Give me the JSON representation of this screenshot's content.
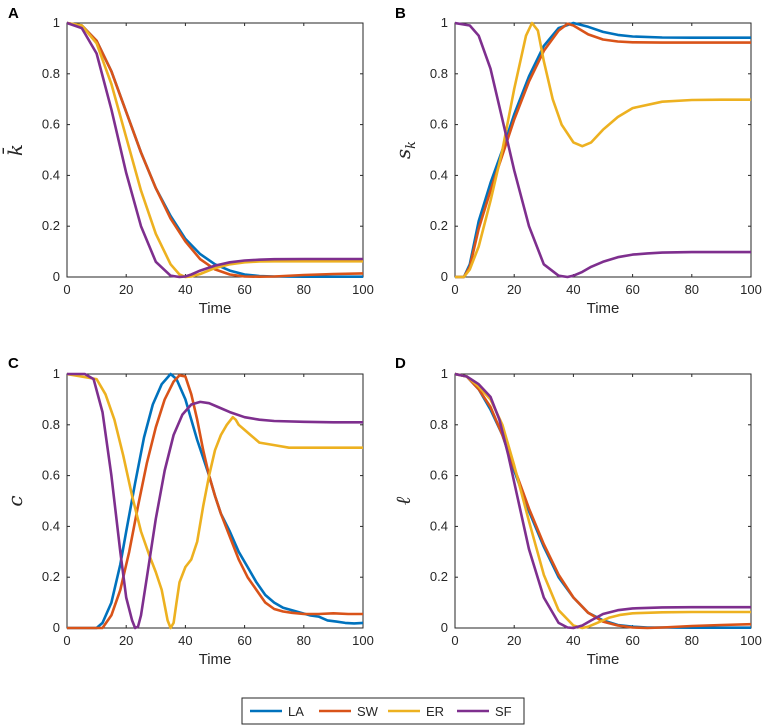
{
  "colors": {
    "LA": "#0072BD",
    "SW": "#D95319",
    "ER": "#EDB120",
    "SF": "#7E2F8E"
  },
  "legend": {
    "entries": [
      "LA",
      "SW",
      "ER",
      "SF"
    ]
  },
  "chart_data": [
    {
      "panel": "A",
      "type": "line",
      "xlabel": "Time",
      "ylabel": "k̄",
      "xlim": [
        0,
        100
      ],
      "ylim": [
        0,
        1
      ],
      "xticks": [
        0,
        20,
        40,
        60,
        80,
        100
      ],
      "yticks": [
        0,
        0.2,
        0.4,
        0.6,
        0.8,
        1
      ],
      "series": [
        {
          "name": "LA",
          "x": [
            0,
            5,
            10,
            15,
            20,
            25,
            30,
            35,
            40,
            45,
            50,
            55,
            60,
            65,
            70,
            80,
            90,
            100
          ],
          "y": [
            1,
            0.99,
            0.93,
            0.81,
            0.65,
            0.49,
            0.35,
            0.24,
            0.15,
            0.09,
            0.05,
            0.025,
            0.01,
            0.004,
            0.002,
            0.001,
            0.001,
            0.001
          ]
        },
        {
          "name": "SW",
          "x": [
            0,
            5,
            10,
            15,
            20,
            25,
            30,
            35,
            40,
            45,
            50,
            55,
            60,
            65,
            70,
            80,
            90,
            100
          ],
          "y": [
            1,
            0.99,
            0.93,
            0.81,
            0.65,
            0.49,
            0.35,
            0.23,
            0.14,
            0.07,
            0.03,
            0.01,
            0.002,
            0.001,
            0.002,
            0.008,
            0.012,
            0.014
          ]
        },
        {
          "name": "ER",
          "x": [
            0,
            5,
            10,
            15,
            20,
            25,
            30,
            35,
            38,
            40,
            42,
            45,
            50,
            55,
            60,
            65,
            70,
            80,
            90,
            100
          ],
          "y": [
            1,
            0.99,
            0.92,
            0.76,
            0.55,
            0.34,
            0.17,
            0.05,
            0.01,
            0.0,
            0.002,
            0.012,
            0.035,
            0.05,
            0.058,
            0.061,
            0.062,
            0.062,
            0.062,
            0.062
          ]
        },
        {
          "name": "SF",
          "x": [
            0,
            5,
            10,
            15,
            20,
            25,
            30,
            35,
            38,
            40,
            42,
            45,
            50,
            55,
            60,
            65,
            70,
            80,
            90,
            100
          ],
          "y": [
            1,
            0.98,
            0.88,
            0.66,
            0.41,
            0.2,
            0.06,
            0.005,
            0.0,
            0.002,
            0.01,
            0.025,
            0.045,
            0.058,
            0.065,
            0.068,
            0.07,
            0.071,
            0.071,
            0.071
          ]
        }
      ]
    },
    {
      "panel": "B",
      "type": "line",
      "xlabel": "Time",
      "ylabel": "s_k",
      "xlim": [
        0,
        100
      ],
      "ylim": [
        0,
        1
      ],
      "xticks": [
        0,
        20,
        40,
        60,
        80,
        100
      ],
      "yticks": [
        0,
        0.2,
        0.4,
        0.6,
        0.8,
        1
      ],
      "series": [
        {
          "name": "LA",
          "x": [
            0,
            3,
            5,
            8,
            12,
            16,
            20,
            25,
            30,
            35,
            40,
            45,
            50,
            55,
            60,
            70,
            80,
            90,
            100
          ],
          "y": [
            0,
            0,
            0.05,
            0.22,
            0.37,
            0.5,
            0.64,
            0.79,
            0.91,
            0.98,
            1.0,
            0.985,
            0.965,
            0.953,
            0.947,
            0.943,
            0.942,
            0.942,
            0.942
          ]
        },
        {
          "name": "SW",
          "x": [
            0,
            3,
            5,
            8,
            12,
            16,
            20,
            25,
            30,
            35,
            38,
            40,
            45,
            50,
            55,
            60,
            70,
            80,
            90,
            100
          ],
          "y": [
            0,
            0,
            0.04,
            0.19,
            0.34,
            0.48,
            0.62,
            0.77,
            0.89,
            0.97,
            0.997,
            0.99,
            0.955,
            0.935,
            0.927,
            0.924,
            0.923,
            0.923,
            0.923,
            0.923
          ]
        },
        {
          "name": "ER",
          "x": [
            0,
            3,
            5,
            8,
            12,
            16,
            20,
            24,
            26,
            28,
            30,
            33,
            36,
            40,
            43,
            46,
            50,
            55,
            60,
            70,
            80,
            90,
            100
          ],
          "y": [
            0,
            0,
            0.03,
            0.12,
            0.3,
            0.5,
            0.74,
            0.95,
            1.0,
            0.97,
            0.85,
            0.7,
            0.6,
            0.53,
            0.515,
            0.53,
            0.58,
            0.63,
            0.665,
            0.69,
            0.697,
            0.698,
            0.698
          ]
        },
        {
          "name": "SF",
          "x": [
            0,
            5,
            8,
            12,
            16,
            20,
            25,
            30,
            35,
            38,
            40,
            43,
            46,
            50,
            55,
            60,
            65,
            70,
            80,
            90,
            100
          ],
          "y": [
            1,
            0.99,
            0.95,
            0.82,
            0.62,
            0.42,
            0.2,
            0.05,
            0.005,
            0.0,
            0.005,
            0.02,
            0.04,
            0.06,
            0.078,
            0.088,
            0.093,
            0.096,
            0.098,
            0.098,
            0.098
          ]
        }
      ]
    },
    {
      "panel": "C",
      "type": "line",
      "xlabel": "Time",
      "ylabel": "c",
      "xlim": [
        0,
        100
      ],
      "ylim": [
        0,
        1
      ],
      "xticks": [
        0,
        20,
        40,
        60,
        80,
        100
      ],
      "yticks": [
        0,
        0.2,
        0.4,
        0.6,
        0.8,
        1
      ],
      "series": [
        {
          "name": "LA",
          "x": [
            0,
            10,
            12,
            15,
            18,
            20,
            23,
            26,
            29,
            32,
            35,
            37,
            40,
            42,
            44,
            46,
            48,
            50,
            52,
            55,
            58,
            61,
            64,
            67,
            70,
            73,
            76,
            79,
            82,
            85,
            88,
            91,
            94,
            97,
            100
          ],
          "y": [
            0,
            0,
            0.02,
            0.1,
            0.25,
            0.38,
            0.57,
            0.75,
            0.88,
            0.96,
            1.0,
            0.98,
            0.9,
            0.82,
            0.74,
            0.67,
            0.6,
            0.52,
            0.45,
            0.38,
            0.3,
            0.24,
            0.18,
            0.13,
            0.1,
            0.08,
            0.07,
            0.06,
            0.05,
            0.045,
            0.03,
            0.025,
            0.02,
            0.018,
            0.02
          ]
        },
        {
          "name": "SW",
          "x": [
            0,
            12,
            15,
            18,
            21,
            24,
            27,
            30,
            33,
            36,
            38,
            40,
            42,
            44,
            46,
            48,
            50,
            52,
            55,
            58,
            61,
            64,
            67,
            70,
            73,
            76,
            80,
            85,
            90,
            95,
            100
          ],
          "y": [
            0,
            0,
            0.05,
            0.15,
            0.3,
            0.48,
            0.65,
            0.79,
            0.9,
            0.97,
            0.995,
            0.99,
            0.92,
            0.82,
            0.7,
            0.6,
            0.52,
            0.45,
            0.36,
            0.27,
            0.2,
            0.15,
            0.1,
            0.075,
            0.065,
            0.06,
            0.055,
            0.055,
            0.058,
            0.055,
            0.055
          ]
        },
        {
          "name": "ER",
          "x": [
            0,
            10,
            13,
            16,
            19,
            22,
            25,
            28,
            30,
            32,
            34,
            35,
            36,
            37,
            38,
            40,
            42,
            44,
            46,
            48,
            50,
            52,
            54,
            56,
            57,
            58,
            60,
            62,
            65,
            70,
            75,
            80,
            85,
            90,
            95,
            100
          ],
          "y": [
            1,
            0.98,
            0.92,
            0.82,
            0.68,
            0.52,
            0.38,
            0.28,
            0.22,
            0.15,
            0.03,
            0.0,
            0.02,
            0.1,
            0.18,
            0.24,
            0.27,
            0.34,
            0.48,
            0.6,
            0.7,
            0.76,
            0.8,
            0.83,
            0.82,
            0.8,
            0.78,
            0.76,
            0.73,
            0.72,
            0.71,
            0.71,
            0.71,
            0.71,
            0.71,
            0.71
          ]
        },
        {
          "name": "SF",
          "x": [
            0,
            6,
            9,
            12,
            15,
            18,
            20,
            22,
            23,
            24,
            25,
            27,
            30,
            33,
            36,
            39,
            42,
            45,
            48,
            51,
            55,
            60,
            65,
            70,
            80,
            90,
            100
          ],
          "y": [
            1,
            1.0,
            0.98,
            0.85,
            0.6,
            0.3,
            0.12,
            0.03,
            0.0,
            0.005,
            0.05,
            0.2,
            0.43,
            0.62,
            0.76,
            0.84,
            0.88,
            0.89,
            0.885,
            0.87,
            0.85,
            0.83,
            0.82,
            0.815,
            0.812,
            0.81,
            0.81
          ]
        }
      ]
    },
    {
      "panel": "D",
      "type": "line",
      "xlabel": "Time",
      "ylabel": "ℓ",
      "xlim": [
        0,
        100
      ],
      "ylim": [
        0,
        1
      ],
      "xticks": [
        0,
        20,
        40,
        60,
        80,
        100
      ],
      "yticks": [
        0,
        0.2,
        0.4,
        0.6,
        0.8,
        1
      ],
      "series": [
        {
          "name": "LA",
          "x": [
            0,
            4,
            8,
            12,
            16,
            20,
            25,
            30,
            35,
            40,
            45,
            50,
            55,
            60,
            65,
            70,
            80,
            90,
            100
          ],
          "y": [
            1,
            0.99,
            0.94,
            0.86,
            0.76,
            0.62,
            0.46,
            0.32,
            0.2,
            0.12,
            0.06,
            0.03,
            0.012,
            0.005,
            0.002,
            0.002,
            0.001,
            0.001,
            0.001
          ]
        },
        {
          "name": "SW",
          "x": [
            0,
            4,
            8,
            12,
            16,
            20,
            25,
            30,
            35,
            40,
            45,
            50,
            55,
            60,
            65,
            70,
            80,
            90,
            100
          ],
          "y": [
            1,
            0.99,
            0.94,
            0.87,
            0.76,
            0.63,
            0.47,
            0.33,
            0.21,
            0.12,
            0.06,
            0.025,
            0.01,
            0.002,
            0.0,
            0.002,
            0.008,
            0.012,
            0.015
          ]
        },
        {
          "name": "ER",
          "x": [
            0,
            4,
            8,
            12,
            16,
            20,
            25,
            30,
            35,
            40,
            43,
            45,
            48,
            52,
            56,
            60,
            70,
            80,
            90,
            100
          ],
          "y": [
            1,
            0.99,
            0.95,
            0.9,
            0.8,
            0.64,
            0.42,
            0.21,
            0.07,
            0.01,
            0.0,
            0.005,
            0.02,
            0.04,
            0.052,
            0.058,
            0.062,
            0.063,
            0.063,
            0.063
          ]
        },
        {
          "name": "SF",
          "x": [
            0,
            4,
            8,
            12,
            15,
            18,
            21,
            25,
            30,
            35,
            38,
            40,
            43,
            46,
            50,
            55,
            60,
            70,
            80,
            90,
            100
          ],
          "y": [
            1,
            0.99,
            0.96,
            0.91,
            0.82,
            0.68,
            0.52,
            0.31,
            0.12,
            0.02,
            0.002,
            0.0,
            0.01,
            0.03,
            0.055,
            0.07,
            0.077,
            0.081,
            0.082,
            0.082,
            0.082
          ]
        }
      ]
    }
  ]
}
